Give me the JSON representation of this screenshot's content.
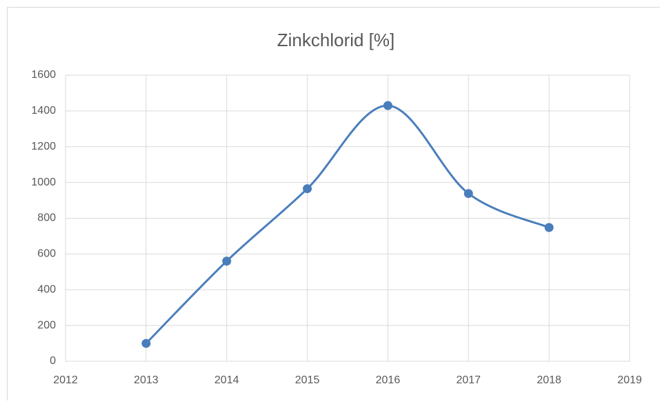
{
  "chart_data": {
    "type": "scatter",
    "title": "Zinkchlorid [%]",
    "x": [
      2013,
      2014,
      2015,
      2016,
      2017,
      2018
    ],
    "series": [
      {
        "color": "#4a7ebb",
        "values": [
          100,
          560,
          965,
          1430,
          938,
          748
        ]
      }
    ],
    "xlim": [
      2012,
      2019
    ],
    "xticks": [
      2012,
      2013,
      2014,
      2015,
      2016,
      2017,
      2018,
      2019
    ],
    "ylim": [
      0,
      1600
    ],
    "yticks": [
      0,
      200,
      400,
      600,
      800,
      1000,
      1200,
      1400,
      1600
    ],
    "grid": true,
    "smooth": true
  }
}
